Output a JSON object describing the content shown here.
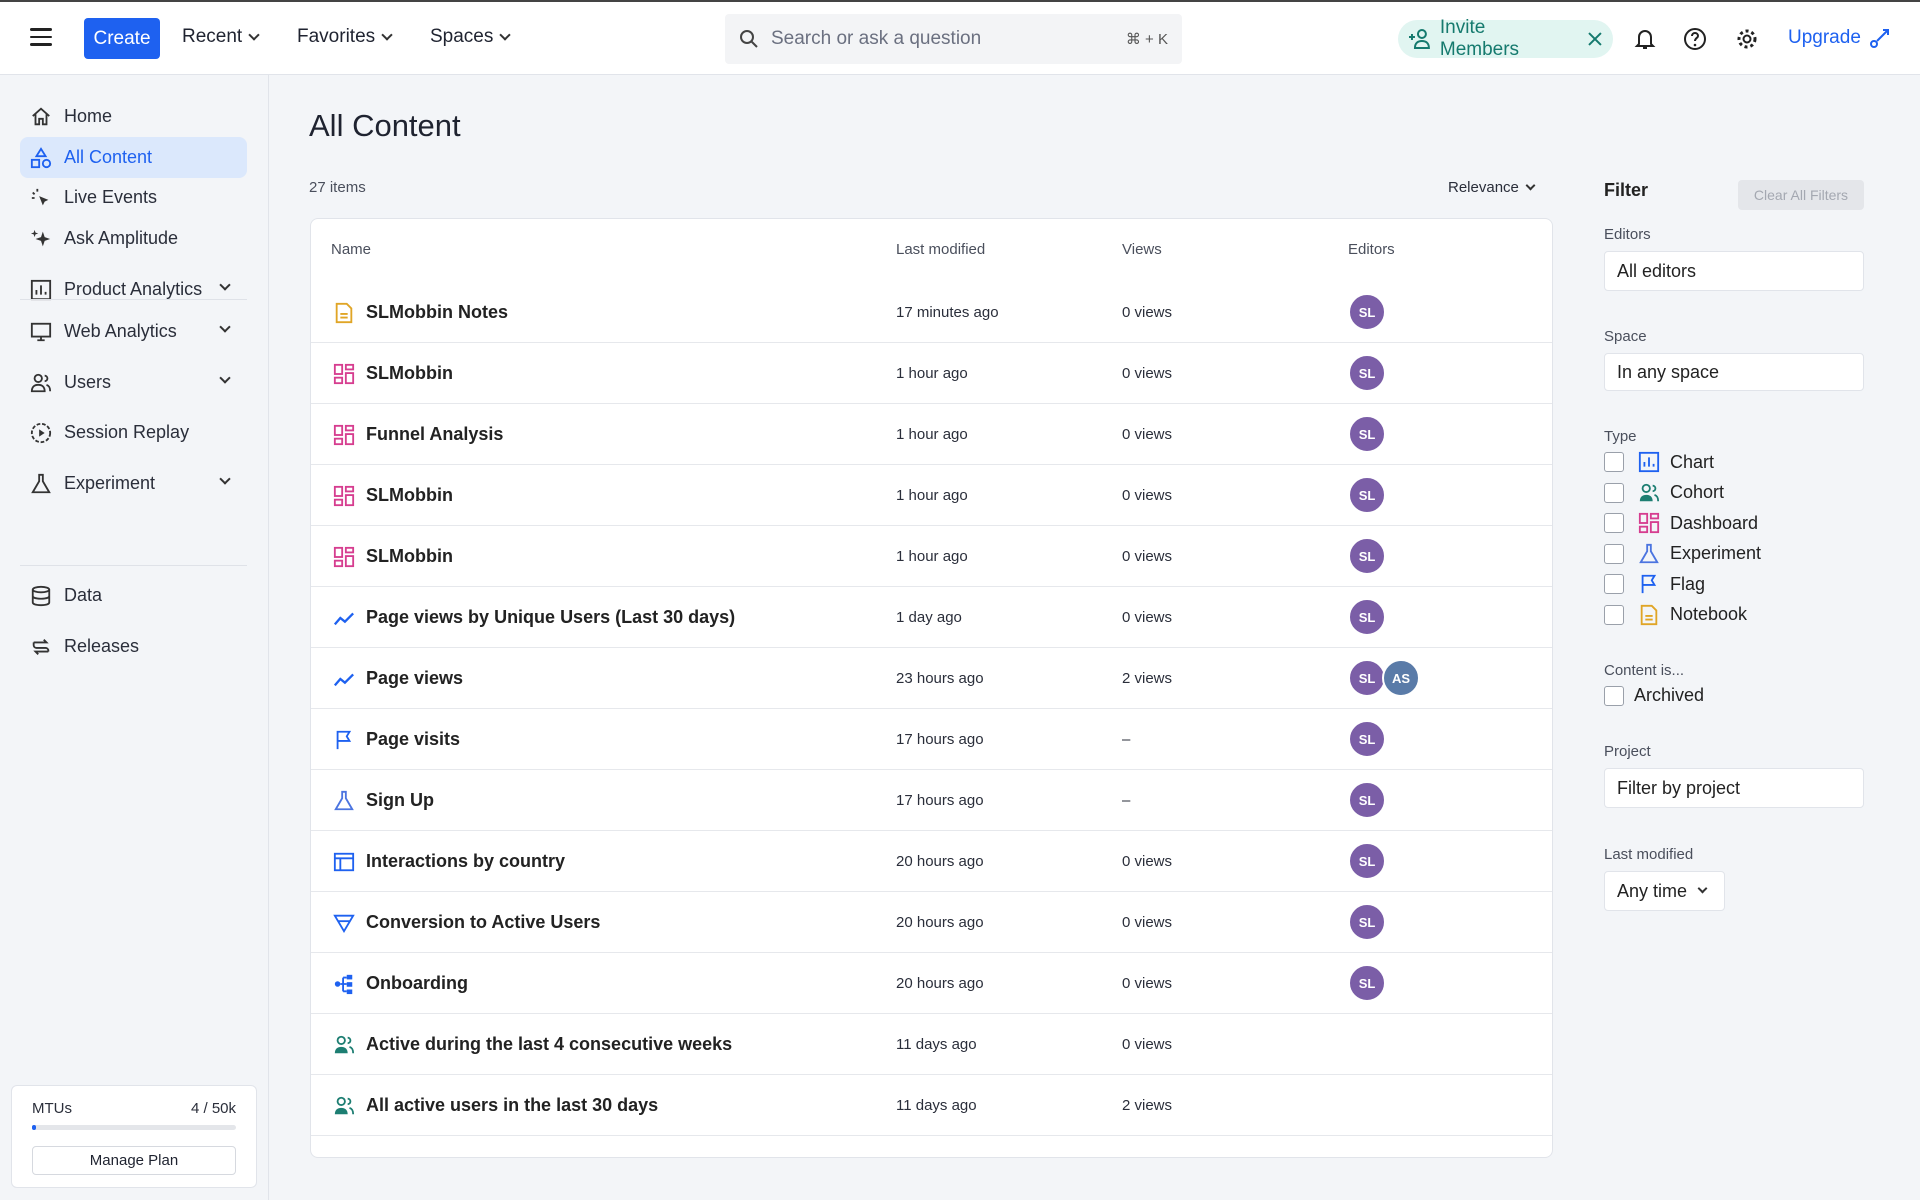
{
  "topbar": {
    "create_label": "Create",
    "nav": [
      {
        "label": "Recent"
      },
      {
        "label": "Favorites"
      },
      {
        "label": "Spaces"
      }
    ],
    "search_placeholder": "Search or ask a question",
    "search_shortcut": "⌘ + K",
    "invite_label": "Invite Members",
    "upgrade_label": "Upgrade"
  },
  "sidebar": {
    "items": [
      {
        "label": "Home",
        "icon": "home-icon"
      },
      {
        "label": "All Content",
        "icon": "shapes-icon",
        "active": true
      },
      {
        "label": "Live Events",
        "icon": "cursor-click-icon"
      },
      {
        "label": "Ask Amplitude",
        "icon": "sparkle-icon"
      },
      {
        "label": "Product Analytics",
        "icon": "bar-chart-icon",
        "expandable": true
      },
      {
        "label": "Web Analytics",
        "icon": "monitor-icon",
        "expandable": true
      },
      {
        "label": "Users",
        "icon": "users-icon",
        "expandable": true
      },
      {
        "label": "Session Replay",
        "icon": "play-circle-icon"
      },
      {
        "label": "Experiment",
        "icon": "flask-icon",
        "expandable": true
      },
      {
        "label": "Data",
        "icon": "database-icon"
      },
      {
        "label": "Releases",
        "icon": "releases-icon"
      }
    ],
    "mtu": {
      "label": "MTUs",
      "value": "4 / 50k",
      "fraction": 8e-05,
      "button": "Manage Plan"
    }
  },
  "main": {
    "title": "All Content",
    "count": "27 items",
    "sort": "Relevance",
    "columns": [
      "Name",
      "Last modified",
      "Views",
      "Editors"
    ],
    "rows": [
      {
        "type": "notebook",
        "name": "SLMobbin Notes",
        "modified": "17 minutes ago",
        "views": "0 views",
        "editors": [
          "SL"
        ]
      },
      {
        "type": "dashboard",
        "name": "SLMobbin",
        "modified": "1 hour ago",
        "views": "0 views",
        "editors": [
          "SL"
        ]
      },
      {
        "type": "dashboard",
        "name": "Funnel Analysis",
        "modified": "1 hour ago",
        "views": "0 views",
        "editors": [
          "SL"
        ]
      },
      {
        "type": "dashboard",
        "name": "SLMobbin",
        "modified": "1 hour ago",
        "views": "0 views",
        "editors": [
          "SL"
        ]
      },
      {
        "type": "dashboard",
        "name": "SLMobbin",
        "modified": "1 hour ago",
        "views": "0 views",
        "editors": [
          "SL"
        ]
      },
      {
        "type": "line-chart",
        "name": "Page views by Unique Users (Last 30 days)",
        "modified": "1 day ago",
        "views": "0 views",
        "editors": [
          "SL"
        ]
      },
      {
        "type": "line-chart",
        "name": "Page views",
        "modified": "23 hours ago",
        "views": "2 views",
        "editors": [
          "SL",
          "AS"
        ]
      },
      {
        "type": "flag",
        "name": "Page visits",
        "modified": "17 hours ago",
        "views": "–",
        "editors": [
          "SL"
        ]
      },
      {
        "type": "experiment",
        "name": "Sign Up",
        "modified": "17 hours ago",
        "views": "–",
        "editors": [
          "SL"
        ]
      },
      {
        "type": "table",
        "name": "Interactions by country",
        "modified": "20 hours ago",
        "views": "0 views",
        "editors": [
          "SL"
        ]
      },
      {
        "type": "funnel",
        "name": "Conversion to Active Users",
        "modified": "20 hours ago",
        "views": "0 views",
        "editors": [
          "SL"
        ]
      },
      {
        "type": "journey",
        "name": "Onboarding",
        "modified": "20 hours ago",
        "views": "0 views",
        "editors": [
          "SL"
        ]
      },
      {
        "type": "cohort",
        "name": "Active during the last 4 consecutive weeks",
        "modified": "11 days ago",
        "views": "0 views",
        "editors": []
      },
      {
        "type": "cohort",
        "name": "All active users in the last 30 days",
        "modified": "11 days ago",
        "views": "2 views",
        "editors": []
      }
    ]
  },
  "filter": {
    "title": "Filter",
    "clear": "Clear All Filters",
    "editors_label": "Editors",
    "editors_value": "All editors",
    "space_label": "Space",
    "space_value": "In any space",
    "type_label": "Type",
    "types": [
      {
        "label": "Chart",
        "type": "chart"
      },
      {
        "label": "Cohort",
        "type": "cohort"
      },
      {
        "label": "Dashboard",
        "type": "dashboard"
      },
      {
        "label": "Experiment",
        "type": "experiment"
      },
      {
        "label": "Flag",
        "type": "flag"
      },
      {
        "label": "Notebook",
        "type": "notebook"
      }
    ],
    "content_label": "Content is...",
    "archived": "Archived",
    "project_label": "Project",
    "project_value": "Filter by project",
    "modified_label": "Last modified",
    "modified_value": "Any time"
  },
  "colors": {
    "accent": "#1e61f0",
    "SL": "#7b5ea7",
    "AS": "#5a7ba8",
    "dashboard": "#d63d8f",
    "notebook": "#e0a526",
    "chart": "#1e61f0",
    "cohort": "#1d7e72",
    "experiment": "#4b74e0"
  }
}
